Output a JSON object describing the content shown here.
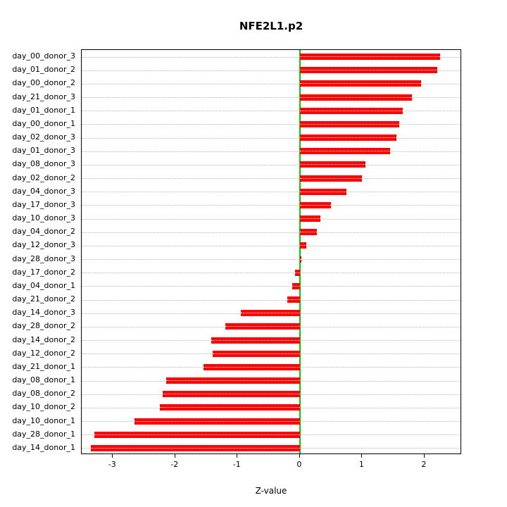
{
  "chart_data": {
    "type": "bar",
    "orientation": "horizontal",
    "title": "NFE2L1.p2",
    "xlabel": "Z-value",
    "ylabel": "",
    "xlim": [
      -3.5,
      2.6
    ],
    "xticks": [
      -3,
      -2,
      -1,
      0,
      1,
      2
    ],
    "xtick_labels": [
      "-3",
      "-2",
      "-1",
      "0",
      "1",
      "2"
    ],
    "grid": "dotted-horizontal",
    "bar_color": "#ff0000",
    "zero_line_color": "#00d400",
    "categories": [
      "day_00_donor_3",
      "day_01_donor_2",
      "day_00_donor_2",
      "day_21_donor_3",
      "day_01_donor_1",
      "day_00_donor_1",
      "day_02_donor_3",
      "day_01_donor_3",
      "day_08_donor_3",
      "day_02_donor_2",
      "day_04_donor_3",
      "day_17_donor_3",
      "day_10_donor_3",
      "day_04_donor_2",
      "day_12_donor_3",
      "day_28_donor_3",
      "day_17_donor_2",
      "day_04_donor_1",
      "day_21_donor_2",
      "day_14_donor_3",
      "day_28_donor_2",
      "day_14_donor_2",
      "day_12_donor_2",
      "day_21_donor_1",
      "day_08_donor_1",
      "day_08_donor_2",
      "day_10_donor_2",
      "day_10_donor_1",
      "day_28_donor_1",
      "day_14_donor_1"
    ],
    "values": [
      2.25,
      2.2,
      1.95,
      1.8,
      1.65,
      1.6,
      1.55,
      1.45,
      1.05,
      1.0,
      0.75,
      0.5,
      0.33,
      0.27,
      0.1,
      0.02,
      -0.08,
      -0.12,
      -0.2,
      -0.95,
      -1.2,
      -1.42,
      -1.4,
      -1.55,
      -2.15,
      -2.2,
      -2.25,
      -2.65,
      -3.3,
      -3.35
    ]
  }
}
